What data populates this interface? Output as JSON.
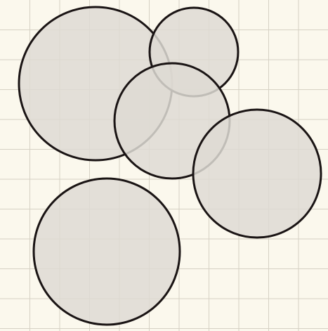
{
  "colors": {
    "background": "#fbf8ed",
    "grid_line": "#d6d1c4",
    "circle_fill": "#dedbd4",
    "circle_fill_opacity": 0.85,
    "circle_stroke": "#1a1414"
  },
  "diagram": {
    "type": "overlapping-circles",
    "circle_count": 5,
    "grid": true
  }
}
